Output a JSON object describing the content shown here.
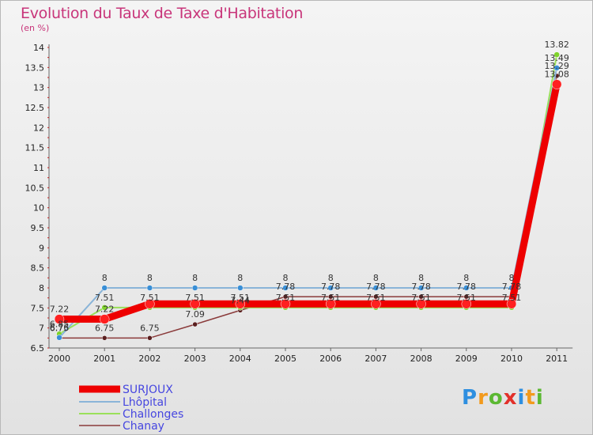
{
  "chart_data": {
    "type": "line",
    "title": "Evolution du Taux de Taxe d'Habitation",
    "ylabel": "(en %)",
    "x": [
      "2000",
      "2001",
      "2002",
      "2003",
      "2004",
      "2005",
      "2006",
      "2007",
      "2008",
      "2009",
      "2010",
      "2011"
    ],
    "ylim": [
      6.5,
      14
    ],
    "yticks": [
      "6.5",
      "7",
      "7.5",
      "8",
      "8.5",
      "9",
      "9.5",
      "10",
      "10.5",
      "11",
      "11.5",
      "12",
      "12.5",
      "13",
      "13.5",
      "14"
    ],
    "series": [
      {
        "name": "SURJOUX",
        "color": "#ee0000",
        "marker": "#ff2020",
        "width": 9,
        "r": 6,
        "values": [
          7.22,
          7.22,
          7.6,
          7.6,
          7.6,
          7.6,
          7.6,
          7.6,
          7.6,
          7.6,
          7.6,
          13.08
        ],
        "labels": [
          "7.22",
          "7.22",
          "",
          "",
          "",
          "",
          "",
          "",
          "",
          "",
          "",
          "13.08"
        ]
      },
      {
        "name": "Lhôpital",
        "color": "#8ab4d8",
        "marker": "#3a8fd6",
        "width": 2,
        "r": 3.5,
        "values": [
          6.76,
          8,
          8,
          8,
          8,
          8,
          8,
          8,
          8,
          8,
          8,
          13.49
        ],
        "labels": [
          "6.76",
          "8",
          "8",
          "8",
          "8",
          "8",
          "8",
          "8",
          "8",
          "8",
          "8",
          "13.49"
        ]
      },
      {
        "name": "Challonges",
        "color": "#9ae05a",
        "marker": "#7fd32a",
        "width": 2,
        "r": 3.5,
        "values": [
          6.85,
          7.51,
          7.51,
          7.51,
          7.51,
          7.51,
          7.51,
          7.51,
          7.51,
          7.51,
          7.51,
          13.82
        ],
        "labels": [
          "6.85",
          "7.51",
          "7.51",
          "7.51",
          "7.51",
          "7.51",
          "7.51",
          "7.51",
          "7.51",
          "7.51",
          "7.51",
          "13.82"
        ]
      },
      {
        "name": "Chanay",
        "color": "#8a3a3a",
        "marker": "#5a1f1f",
        "width": 1.5,
        "r": 3,
        "values": [
          6.75,
          6.75,
          6.75,
          7.09,
          7.44,
          7.78,
          7.78,
          7.78,
          7.78,
          7.78,
          7.78,
          13.29
        ],
        "labels": [
          "6.75",
          "6.75",
          "6.75",
          "7.09",
          "7.44",
          "7.78",
          "7.78",
          "7.78",
          "7.78",
          "7.78",
          "7.78",
          "13.29"
        ]
      }
    ],
    "legend_position": "bottom-left"
  },
  "logo": {
    "text": "Proxiti",
    "letters": [
      "P",
      "r",
      "o",
      "x",
      "i",
      "t",
      "i"
    ],
    "colors": [
      "#2e8fe0",
      "#f29a1c",
      "#5bb832",
      "#e2302a",
      "#2e8fe0",
      "#f29a1c",
      "#5bb832"
    ]
  }
}
